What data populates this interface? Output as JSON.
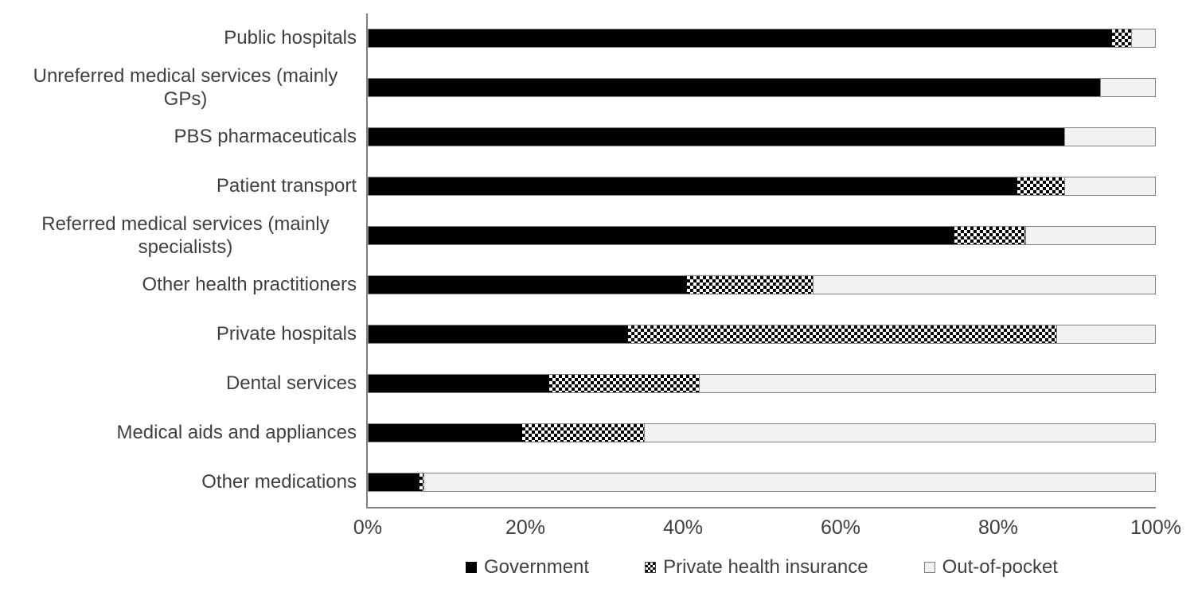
{
  "chart_data": {
    "type": "bar",
    "orientation": "horizontal",
    "stacked": true,
    "title": "",
    "xlabel": "",
    "ylabel": "",
    "xlim": [
      0,
      100
    ],
    "x_tick_labels": [
      "0%",
      "20%",
      "40%",
      "60%",
      "80%",
      "100%"
    ],
    "grid": false,
    "legend_position": "bottom",
    "categories": [
      "Public hospitals",
      "Unreferred medical services (mainly GPs)",
      "PBS pharmaceuticals",
      "Patient transport",
      "Referred medical services (mainly specialists)",
      "Other health practitioners",
      "Private hospitals",
      "Dental services",
      "Medical aids and appliances",
      "Other medications"
    ],
    "series": [
      {
        "name": "Government",
        "swatch": "solid-black",
        "values": [
          94.5,
          93,
          88.5,
          82.5,
          74.5,
          40.5,
          33,
          23,
          19.5,
          6.5
        ]
      },
      {
        "name": "Private health insurance",
        "swatch": "black-white-checkerboard",
        "values": [
          2.5,
          0,
          0,
          6,
          9,
          16,
          54.5,
          19,
          15.5,
          0.5
        ]
      },
      {
        "name": "Out-of-pocket",
        "swatch": "light-gray",
        "values": [
          3,
          7,
          11.5,
          11.5,
          16.5,
          43.5,
          12.5,
          58,
          65,
          93
        ]
      }
    ]
  },
  "colors": {
    "government_fill": "#000000",
    "private_health_insurance_fill": "black-white-checkerboard",
    "out_of_pocket_fill": "#f2f2f2",
    "segment_border": "#808080",
    "axis_line": "#808080",
    "text": "#404040",
    "background": "#ffffff"
  }
}
